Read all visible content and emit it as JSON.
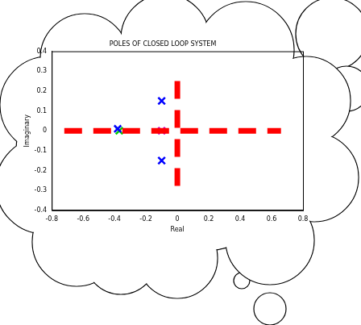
{
  "chart_data": {
    "type": "scatter",
    "title": "POLES OF CLOSED LOOP SYSTEM",
    "x_label": "Real",
    "y_label": "Imaginary",
    "xlim": [
      -0.8,
      0.8
    ],
    "ylim": [
      -0.4,
      0.4
    ],
    "xticks": [
      -0.8,
      -0.6,
      -0.4,
      -0.2,
      0,
      0.2,
      0.4,
      0.6,
      0.8
    ],
    "yticks": [
      -0.4,
      -0.3,
      -0.2,
      -0.1,
      0,
      0.1,
      0.2,
      0.3,
      0.4
    ],
    "grid": false,
    "series": [
      {
        "color": "#ff0000",
        "line_style": "dashed",
        "marker": "none",
        "x": [
          -0.72,
          0.66
        ],
        "values": [
          0,
          0
        ]
      },
      {
        "color": "#ff0000",
        "line_style": "dashed",
        "marker": "none",
        "x": [
          0,
          0
        ],
        "values": [
          0.25,
          -0.3
        ]
      },
      {
        "color": "#0000ff",
        "line_style": "none",
        "marker": "x",
        "x": [
          -0.1,
          -0.1,
          -0.38
        ],
        "values": [
          0.15,
          -0.15,
          0.01
        ]
      },
      {
        "color": "#00cc00",
        "line_style": "none",
        "marker": "x",
        "x": [
          -0.37
        ],
        "values": [
          0
        ]
      },
      {
        "color": "#cc00cc",
        "line_style": "none",
        "marker": "x",
        "x": [
          -0.1
        ],
        "values": [
          0
        ]
      }
    ]
  }
}
